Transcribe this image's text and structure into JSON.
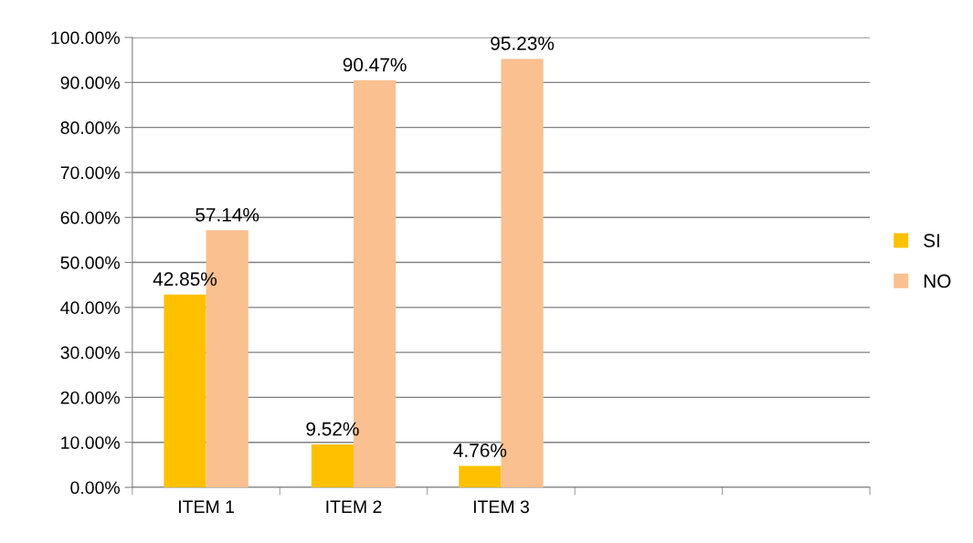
{
  "chart_data": {
    "type": "bar",
    "categories": [
      "ITEM 1",
      "ITEM 2",
      "ITEM 3",
      null,
      null
    ],
    "series": [
      {
        "name": "SI",
        "color": "#ffc000",
        "values": [
          42.85,
          9.52,
          4.76,
          null,
          null
        ],
        "value_labels": [
          "42.85%",
          "9.52%",
          "4.76%",
          null,
          null
        ]
      },
      {
        "name": "NO",
        "color": "#fac090",
        "values": [
          57.14,
          90.47,
          95.23,
          null,
          null
        ],
        "value_labels": [
          "57.14%",
          "90.47%",
          "95.23%",
          null,
          null
        ]
      }
    ],
    "ylim": [
      0,
      100
    ],
    "yticks": [
      {
        "value": 0,
        "label": "0.00%"
      },
      {
        "value": 10,
        "label": "10.00%"
      },
      {
        "value": 20,
        "label": "20.00%"
      },
      {
        "value": 30,
        "label": "30.00%"
      },
      {
        "value": 40,
        "label": "40.00%"
      },
      {
        "value": 50,
        "label": "50.00%"
      },
      {
        "value": 60,
        "label": "60.00%"
      },
      {
        "value": 70,
        "label": "70.00%"
      },
      {
        "value": 80,
        "label": "80.00%"
      },
      {
        "value": 90,
        "label": "90.00%"
      },
      {
        "value": 100,
        "label": "100.00%"
      }
    ],
    "grid": "y",
    "legend": "right"
  }
}
